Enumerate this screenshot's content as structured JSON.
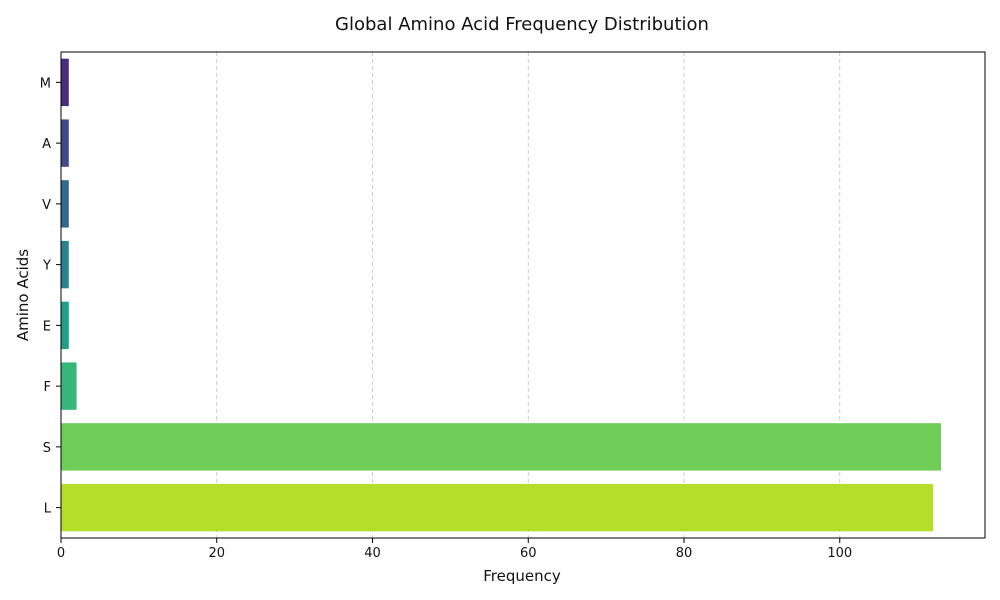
{
  "chart_data": {
    "type": "bar",
    "orientation": "horizontal",
    "title": "Global Amino Acid Frequency Distribution",
    "xlabel": "Frequency",
    "ylabel": "Amino Acids",
    "categories": [
      "M",
      "A",
      "V",
      "Y",
      "E",
      "F",
      "S",
      "L"
    ],
    "values": [
      1,
      1,
      1,
      1,
      1,
      2,
      113,
      112
    ],
    "colors": [
      "#472d7b",
      "#3e4a89",
      "#31688e",
      "#26828e",
      "#1f9e89",
      "#35b779",
      "#6ece58",
      "#b5de2b"
    ],
    "xlim": [
      0,
      118.65
    ],
    "xticks": [
      0,
      20,
      40,
      60,
      80,
      100
    ],
    "xtick_labels": [
      "0",
      "20",
      "40",
      "60",
      "80",
      "100"
    ],
    "grid": "x-dashed",
    "legend": "none"
  }
}
